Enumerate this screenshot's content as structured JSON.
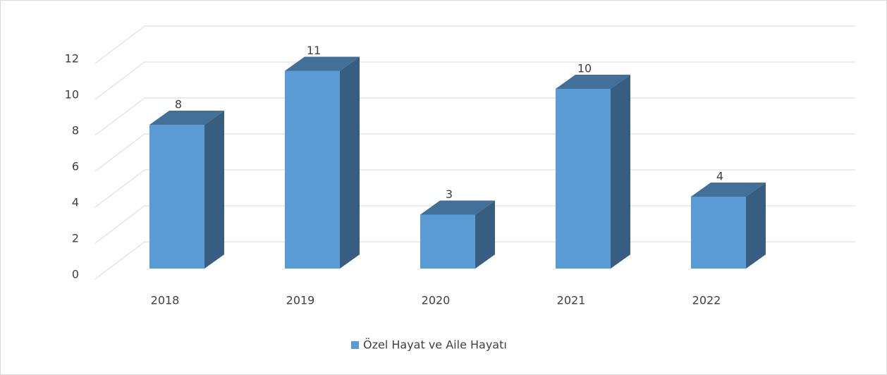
{
  "chart_data": {
    "type": "bar3d",
    "categories": [
      "2018",
      "2019",
      "2020",
      "2021",
      "2022"
    ],
    "series": [
      {
        "name": "Özel Hayat ve Aile Hayatı",
        "color": "#5b9bd5",
        "values": [
          8,
          11,
          3,
          10,
          4
        ]
      }
    ],
    "ylim": [
      0,
      12
    ],
    "yticks": [
      0,
      2,
      4,
      6,
      8,
      10,
      12
    ],
    "grid": true,
    "legend": "bottom"
  }
}
